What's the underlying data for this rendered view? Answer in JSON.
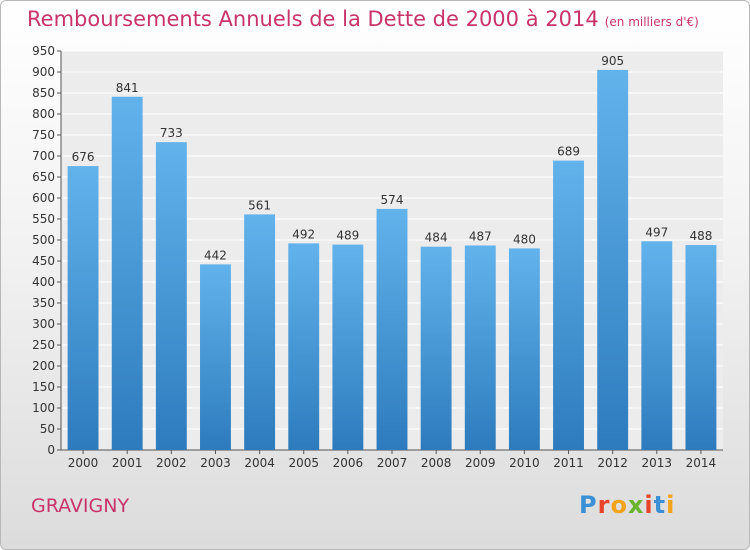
{
  "header": {
    "title": "Remboursements Annuels de la Dette de 2000 à 2014",
    "subtitle": "(en milliers d'€)"
  },
  "footer": {
    "city": "GRAVIGNY",
    "logo_text": "Proxiti"
  },
  "colors": {
    "accent": "#c8336a",
    "bar_top": "#62b3ec",
    "bar_bottom": "#2d7bbd"
  },
  "chart_data": {
    "type": "bar",
    "categories": [
      "2000",
      "2001",
      "2002",
      "2003",
      "2004",
      "2005",
      "2006",
      "2007",
      "2008",
      "2009",
      "2010",
      "2011",
      "2012",
      "2013",
      "2014"
    ],
    "values": [
      676,
      841,
      733,
      442,
      561,
      492,
      489,
      574,
      484,
      487,
      480,
      689,
      905,
      497,
      488
    ],
    "ylim": [
      0,
      950
    ],
    "ytick_step": 50,
    "grid": true
  }
}
